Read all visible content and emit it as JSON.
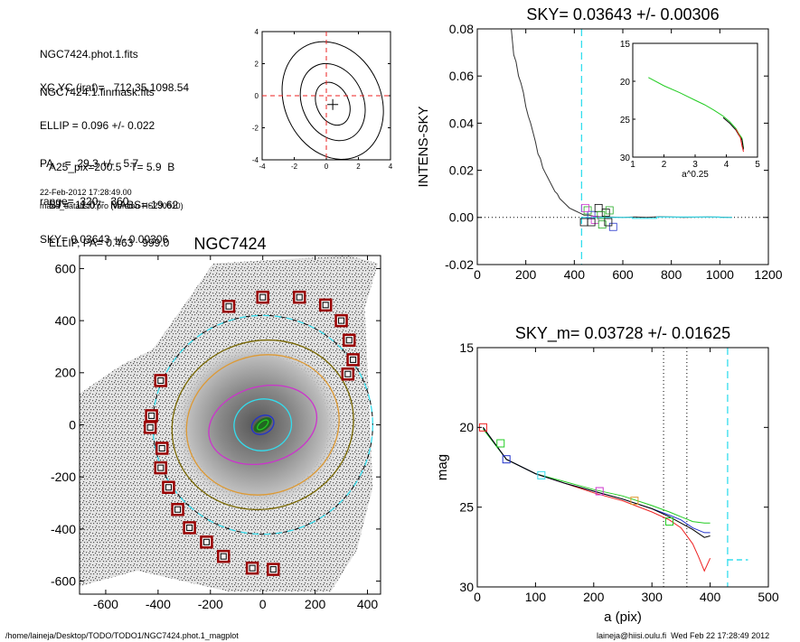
{
  "header": {
    "lines1": [
      "NGC7424.phot.1.fits",
      "NGC7424.1.finmask.fits"
    ],
    "lines2": [
      "XC,YC (iraf)=   712.35,1098.54",
      "ELLIP = 0.096 +/- 0.022",
      "PA    =  29.3 +/-   5.7",
      "range=  320.-  360.",
      "SKY= 0.03643 +/- 0.00306"
    ],
    "lines3": [
      "A25_pix=200.5   T= 5.9  B",
      "BT=  11.07   MABS=-19.62",
      "ELLIP, PA= 0.463   999.0"
    ],
    "date": "22-Feb-2012 17:28:49.00",
    "program": "make_datalist0.pro (version HS230610)"
  },
  "footer": {
    "path": "/home/laineja/Desktop/TODO/TODO1/NGC7424.phot.1_magplot",
    "user": "laineja@hiisi.oulu.fi  Wed Feb 22 17:28:49 2012"
  },
  "colors": {
    "cyan": "#33ddee",
    "red": "#ee2222",
    "green": "#22cc22",
    "blue": "#2233cc",
    "magenta": "#cc33cc",
    "orange": "#dd9933",
    "olive": "#776600",
    "mask": "#990000",
    "gray": "#999999"
  },
  "chart_data": [
    {
      "id": "contour",
      "type": "contour",
      "xlim": [
        -4,
        4
      ],
      "ylim": [
        -4,
        4
      ],
      "xticks": [
        -4,
        -2,
        0,
        2,
        4
      ],
      "yticks": [
        -4,
        -2,
        0,
        2,
        4
      ],
      "center": [
        0.4,
        -0.55
      ],
      "contours": [
        {
          "cx": 0.4,
          "cy": -0.5,
          "rx": 1.0,
          "ry": 1.4
        },
        {
          "cx": 0.4,
          "cy": -0.4,
          "rx": 1.9,
          "ry": 2.5
        },
        {
          "cx": 0.4,
          "cy": -0.3,
          "rx": 3.0,
          "ry": 3.8
        }
      ],
      "ref_lines": {
        "x": 0,
        "y": 0
      }
    },
    {
      "id": "galaxy-image",
      "type": "image",
      "title": "NGC7424",
      "xlim": [
        -700,
        450
      ],
      "ylim": [
        -650,
        650
      ],
      "xticks": [
        -600,
        -400,
        -200,
        0,
        200,
        400
      ],
      "yticks": [
        -600,
        -400,
        -200,
        0,
        200,
        400,
        600
      ],
      "ellipses": [
        {
          "color": "cyan",
          "dashed": true,
          "r": 420,
          "e": 0.0,
          "pa": 0
        },
        {
          "color": "olive",
          "dashed": false,
          "r": 350,
          "e": 0.08,
          "pa": 20
        },
        {
          "color": "orange",
          "dashed": false,
          "r": 295,
          "e": 0.1,
          "pa": 20
        },
        {
          "color": "magenta",
          "dashed": false,
          "r": 210,
          "e": 0.3,
          "pa": 15
        },
        {
          "color": "cyan",
          "dashed": false,
          "r": 110,
          "e": 0.1,
          "pa": 10
        },
        {
          "color": "blue",
          "dashed": false,
          "r": 45,
          "e": 0.25,
          "pa": 30
        },
        {
          "color": "green",
          "dashed": false,
          "r": 25,
          "e": 0.5,
          "pa": 40
        }
      ],
      "mask_boxes": [
        [
          -130,
          455
        ],
        [
          0,
          490
        ],
        [
          140,
          490
        ],
        [
          240,
          460
        ],
        [
          300,
          400
        ],
        [
          330,
          325
        ],
        [
          345,
          250
        ],
        [
          325,
          195
        ],
        [
          -390,
          170
        ],
        [
          -425,
          35
        ],
        [
          -430,
          -10
        ],
        [
          -385,
          -90
        ],
        [
          -390,
          -165
        ],
        [
          -360,
          -240
        ],
        [
          -325,
          -325
        ],
        [
          -280,
          -395
        ],
        [
          -215,
          -450
        ],
        [
          -150,
          -505
        ],
        [
          -40,
          -550
        ],
        [
          40,
          -555
        ]
      ]
    },
    {
      "id": "intens-sky",
      "type": "line",
      "title": "SKY= 0.03643 +/- 0.00306",
      "ylabel": "INTENS-SKY",
      "xlim": [
        0,
        1200
      ],
      "ylim": [
        -0.02,
        0.08
      ],
      "xticks": [
        0,
        200,
        400,
        600,
        800,
        1000,
        1200
      ],
      "yticks": [
        -0.02,
        0.0,
        0.02,
        0.04,
        0.06,
        0.08
      ],
      "vline": 430,
      "x": [
        140,
        150,
        160,
        170,
        180,
        190,
        200,
        210,
        220,
        230,
        240,
        250,
        260,
        270,
        280,
        290,
        300,
        310,
        320,
        330,
        340,
        350,
        360,
        380,
        400,
        420,
        440,
        460,
        480,
        500,
        540,
        600,
        650,
        700,
        750,
        800,
        850,
        900,
        950,
        1000,
        1050
      ],
      "y": [
        0.08,
        0.069,
        0.066,
        0.06,
        0.057,
        0.053,
        0.047,
        0.043,
        0.04,
        0.036,
        0.032,
        0.027,
        0.025,
        0.021,
        0.019,
        0.017,
        0.015,
        0.013,
        0.011,
        0.01,
        0.008,
        0.007,
        0.006,
        0.004,
        0.003,
        0.002,
        0.001,
        0.001,
        0.0005,
        0.0003,
        0.0002,
        0.0,
        0.0002,
        0.0,
        0.0003,
        0.0002,
        0.0,
        0.0001,
        0.0002,
        0.0001,
        0.0
      ],
      "boxes": [
        [
          440,
          -0.002
        ],
        [
          455,
          0.003
        ],
        [
          470,
          0.001
        ],
        [
          485,
          -0.001
        ],
        [
          500,
          0.004
        ],
        [
          515,
          -0.003
        ],
        [
          530,
          0.002
        ],
        [
          545,
          0.003
        ],
        [
          560,
          -0.004
        ],
        [
          445,
          0.004
        ],
        [
          470,
          -0.002
        ],
        [
          510,
          0.001
        ],
        [
          540,
          -0.002
        ]
      ],
      "inset": {
        "xlim": [
          1,
          5
        ],
        "ylim": [
          30,
          15
        ],
        "xlabel": "a^0.25",
        "xticks": [
          1,
          2,
          3,
          4,
          5
        ],
        "yticks": [
          15,
          20,
          25,
          30
        ],
        "x": [
          1.5,
          2.0,
          2.5,
          3.0,
          3.3,
          3.6,
          3.9,
          4.1,
          4.3,
          4.4,
          4.5,
          4.55
        ],
        "y": [
          19.5,
          20.6,
          21.5,
          22.5,
          23.1,
          23.8,
          24.6,
          25.3,
          26.2,
          26.9,
          27.5,
          28.8
        ]
      }
    },
    {
      "id": "mag-profile",
      "type": "line",
      "title": "SKY_m=  0.03728 +/- 0.01625",
      "xlabel": "a (pix)",
      "ylabel": "mag",
      "xlim": [
        0,
        500
      ],
      "ylim": [
        30,
        15
      ],
      "xticks": [
        0,
        100,
        200,
        300,
        400,
        500
      ],
      "yticks": [
        15,
        20,
        25,
        30
      ],
      "dotted_vlines": [
        320,
        360
      ],
      "dashed_vline": 430,
      "dash_segment": {
        "x": [
          430,
          465
        ],
        "y": 28.3
      },
      "series": [
        {
          "color": "red",
          "x": [
            10,
            50,
            100,
            150,
            200,
            250,
            300,
            330,
            350,
            370,
            380,
            390,
            400
          ],
          "y": [
            20.0,
            22.0,
            22.9,
            23.5,
            24.1,
            24.6,
            25.3,
            25.8,
            26.3,
            27.3,
            28.1,
            29.0,
            28.2
          ]
        },
        {
          "color": "green",
          "x": [
            10,
            50,
            100,
            150,
            200,
            250,
            300,
            330,
            350,
            370,
            390,
            400
          ],
          "y": [
            20.1,
            22.0,
            22.9,
            23.4,
            23.9,
            24.3,
            24.9,
            25.3,
            25.6,
            25.9,
            26.0,
            26.0
          ]
        },
        {
          "color": "blue",
          "x": [
            10,
            50,
            100,
            150,
            200,
            250,
            300,
            330,
            350,
            370,
            390,
            400
          ],
          "y": [
            20.0,
            22.0,
            22.9,
            23.5,
            24.0,
            24.5,
            25.1,
            25.5,
            25.8,
            26.3,
            26.6,
            26.6
          ]
        },
        {
          "color": "black",
          "x": [
            10,
            50,
            100,
            150,
            200,
            250,
            300,
            330,
            350,
            370,
            390,
            400
          ],
          "y": [
            20.0,
            22.0,
            22.9,
            23.5,
            24.0,
            24.5,
            25.1,
            25.6,
            26.0,
            26.4,
            26.9,
            26.8
          ]
        }
      ],
      "boxes": [
        [
          10,
          20.0,
          "red"
        ],
        [
          40,
          21.0,
          "green"
        ],
        [
          50,
          22.0,
          "blue"
        ],
        [
          110,
          23.0,
          "cyan"
        ],
        [
          210,
          24.0,
          "magenta"
        ],
        [
          270,
          24.6,
          "orange"
        ],
        [
          330,
          25.9,
          "green"
        ]
      ]
    }
  ]
}
